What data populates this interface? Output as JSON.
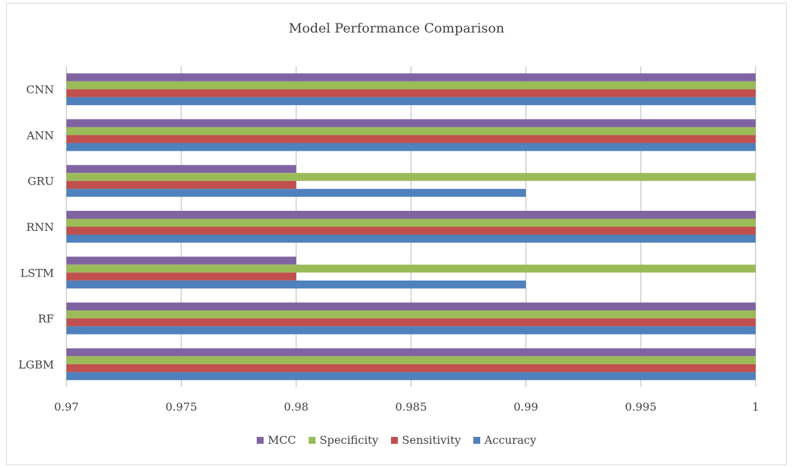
{
  "chart_data": {
    "type": "bar",
    "orientation": "horizontal",
    "title": "Model Performance Comparison",
    "xlabel": "",
    "ylabel": "",
    "xlim": [
      0.97,
      1
    ],
    "x_ticks": [
      "0.97",
      "0.975",
      "0.98",
      "0.985",
      "0.99",
      "0.995",
      "1"
    ],
    "categories": [
      "CNN",
      "ANN",
      "GRU",
      "RNN",
      "LSTM",
      "RF",
      "LGBM"
    ],
    "series": [
      {
        "name": "MCC",
        "color": "#8064a2",
        "values": [
          1,
          1,
          0.98,
          1,
          0.98,
          1,
          1
        ]
      },
      {
        "name": "Specificity",
        "color": "#9bbb59",
        "values": [
          1,
          1,
          1,
          1,
          1,
          1,
          1
        ]
      },
      {
        "name": "Sensitivity",
        "color": "#c0504d",
        "values": [
          1,
          1,
          0.98,
          1,
          0.98,
          1,
          1
        ]
      },
      {
        "name": "Accuracy",
        "color": "#4f81bd",
        "values": [
          1,
          1,
          0.99,
          1,
          0.99,
          1,
          1
        ]
      }
    ],
    "grid": true,
    "legend_position": "bottom"
  }
}
